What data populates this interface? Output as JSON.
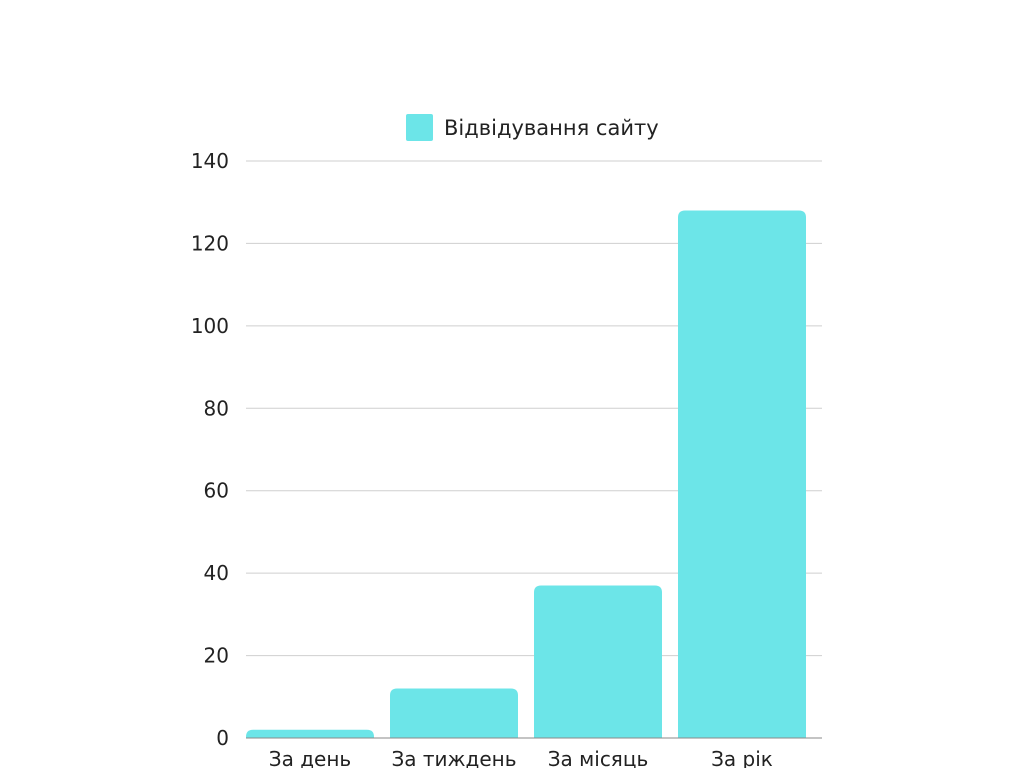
{
  "chart_data": {
    "type": "bar",
    "categories": [
      "За день",
      "За тиждень",
      "За місяць",
      "За рік"
    ],
    "series": [
      {
        "name": "Відвідування сайту",
        "values": [
          2,
          12,
          37,
          128
        ],
        "color": "#6ce5e8"
      }
    ],
    "ylim": [
      0,
      140
    ],
    "yticks": [
      0,
      20,
      40,
      60,
      80,
      100,
      120,
      140
    ],
    "grid": true,
    "legend_position": "top-center",
    "title": "",
    "xlabel": "",
    "ylabel": ""
  }
}
